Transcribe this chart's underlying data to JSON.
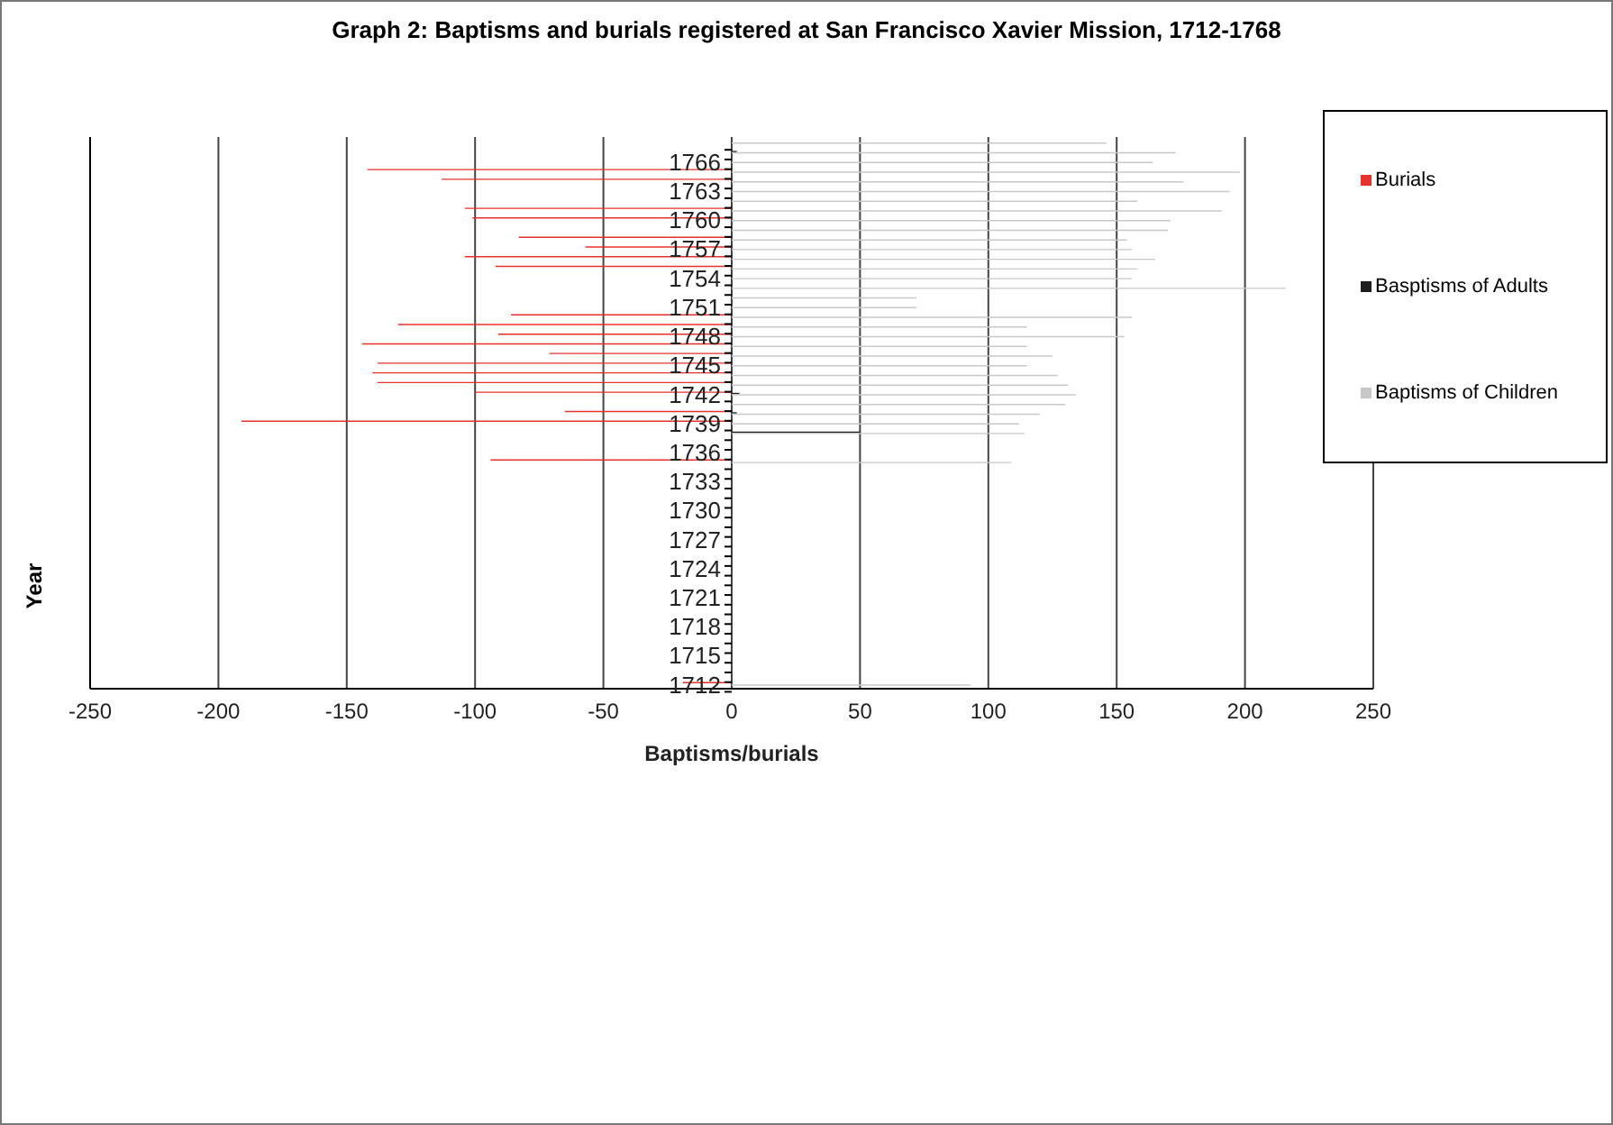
{
  "chart_data": {
    "type": "bar",
    "orientation": "horizontal",
    "title": "Graph 2: Baptisms and burials registered at San Francisco Xavier Mission, 1712-1768",
    "xlabel": "Baptisms/burials",
    "ylabel": "Year",
    "categories": [
      null,
      null,
      "1766",
      null,
      null,
      "1763",
      null,
      null,
      "1760",
      null,
      null,
      "1757",
      null,
      null,
      "1754",
      null,
      null,
      "1751",
      null,
      null,
      "1748",
      null,
      null,
      "1745",
      null,
      null,
      "1742",
      null,
      null,
      "1739",
      null,
      null,
      "1736",
      null,
      null,
      "1733",
      null,
      null,
      "1730",
      null,
      null,
      "1727",
      null,
      null,
      "1724",
      null,
      null,
      "1721",
      null,
      null,
      "1718",
      null,
      null,
      "1715",
      null,
      null,
      "1712"
    ],
    "series": [
      {
        "name": "Burials",
        "color": "#e8312b",
        "values": [
          null,
          null,
          null,
          -142,
          -113,
          null,
          null,
          -104,
          -101,
          null,
          -83,
          -57,
          -104,
          -92,
          null,
          null,
          null,
          null,
          -86,
          -130,
          -91,
          -144,
          -71,
          -138,
          -140,
          -138,
          -100,
          null,
          -65,
          -191,
          null,
          null,
          null,
          -94,
          null,
          null,
          null,
          null,
          null,
          null,
          null,
          null,
          null,
          null,
          null,
          null,
          null,
          null,
          null,
          null,
          null,
          null,
          null,
          null,
          null,
          null,
          -19
        ]
      },
      {
        "name": "Basptisms of Adults",
        "color": "#1e1e1e",
        "values": [
          null,
          2,
          null,
          null,
          null,
          null,
          null,
          null,
          null,
          null,
          null,
          null,
          null,
          null,
          null,
          null,
          null,
          null,
          null,
          null,
          null,
          null,
          null,
          null,
          null,
          null,
          3,
          null,
          2,
          null,
          50,
          null,
          null,
          null,
          null,
          null,
          null,
          null,
          null,
          null,
          null,
          null,
          null,
          null,
          null,
          null,
          null,
          null,
          null,
          null,
          null,
          null,
          null,
          null,
          null,
          null,
          null
        ]
      },
      {
        "name": "Baptisms of Children",
        "color": "#c8c8c8",
        "values": [
          146,
          173,
          164,
          198,
          176,
          194,
          158,
          191,
          171,
          170,
          154,
          156,
          165,
          158,
          156,
          216,
          72,
          72,
          156,
          115,
          153,
          115,
          125,
          115,
          127,
          131,
          134,
          130,
          120,
          112,
          114,
          null,
          null,
          109,
          null,
          null,
          null,
          null,
          null,
          null,
          null,
          null,
          null,
          null,
          null,
          null,
          null,
          null,
          null,
          null,
          null,
          null,
          null,
          null,
          null,
          null,
          93
        ]
      }
    ],
    "xlim": [
      -250,
      250
    ],
    "xticks": [
      -250,
      -200,
      -150,
      -100,
      -50,
      0,
      50,
      100,
      150,
      200,
      250
    ],
    "grid": "x",
    "legend": "right"
  }
}
